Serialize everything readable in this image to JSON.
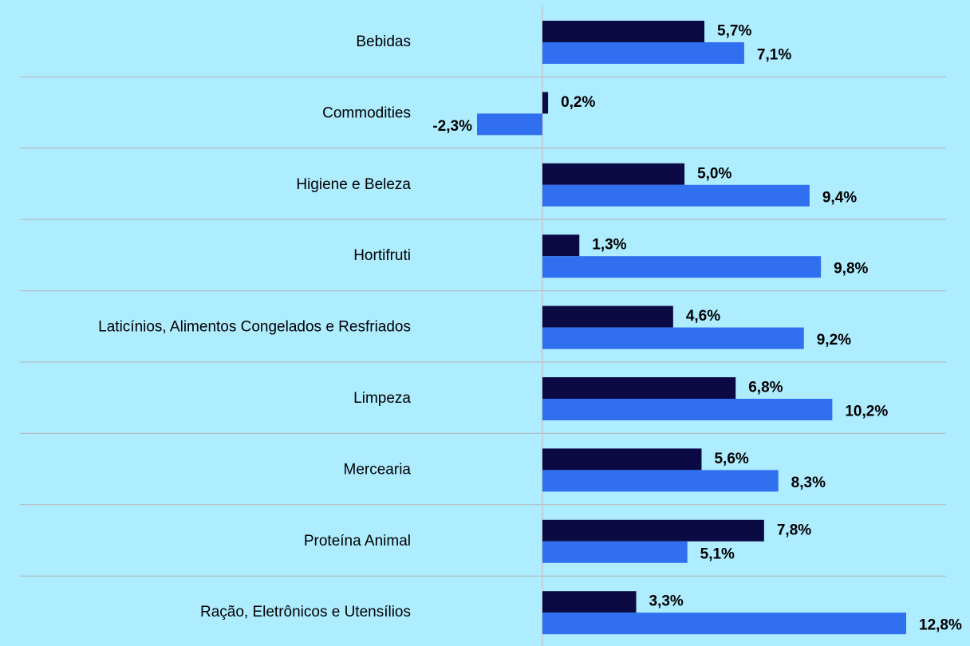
{
  "chart_data": {
    "type": "bar",
    "orientation": "horizontal",
    "categories": [
      "Bebidas",
      "Commodities",
      "Higiene e Beleza",
      "Hortifruti",
      "Laticínios, Alimentos Congelados e Resfriados",
      "Limpeza",
      "Mercearia",
      "Proteína Animal",
      "Ração, Eletrônicos e Utensílios"
    ],
    "series": [
      {
        "color": "#0b0a45",
        "values": [
          5.7,
          0.2,
          5.0,
          1.3,
          4.6,
          6.8,
          5.6,
          7.8,
          3.3
        ],
        "value_labels": [
          "5,7%",
          "0,2%",
          "5,0%",
          "1,3%",
          "4,6%",
          "6,8%",
          "5,6%",
          "7,8%",
          "3,3%"
        ]
      },
      {
        "color": "#2f6ff0",
        "values": [
          7.1,
          -2.3,
          9.4,
          9.8,
          9.2,
          10.2,
          8.3,
          5.1,
          12.8
        ],
        "value_labels": [
          "7,1%",
          "-2,3%",
          "9,4%",
          "9,8%",
          "9,2%",
          "10,2%",
          "8,3%",
          "5,1%",
          "12,8%"
        ]
      }
    ]
  }
}
